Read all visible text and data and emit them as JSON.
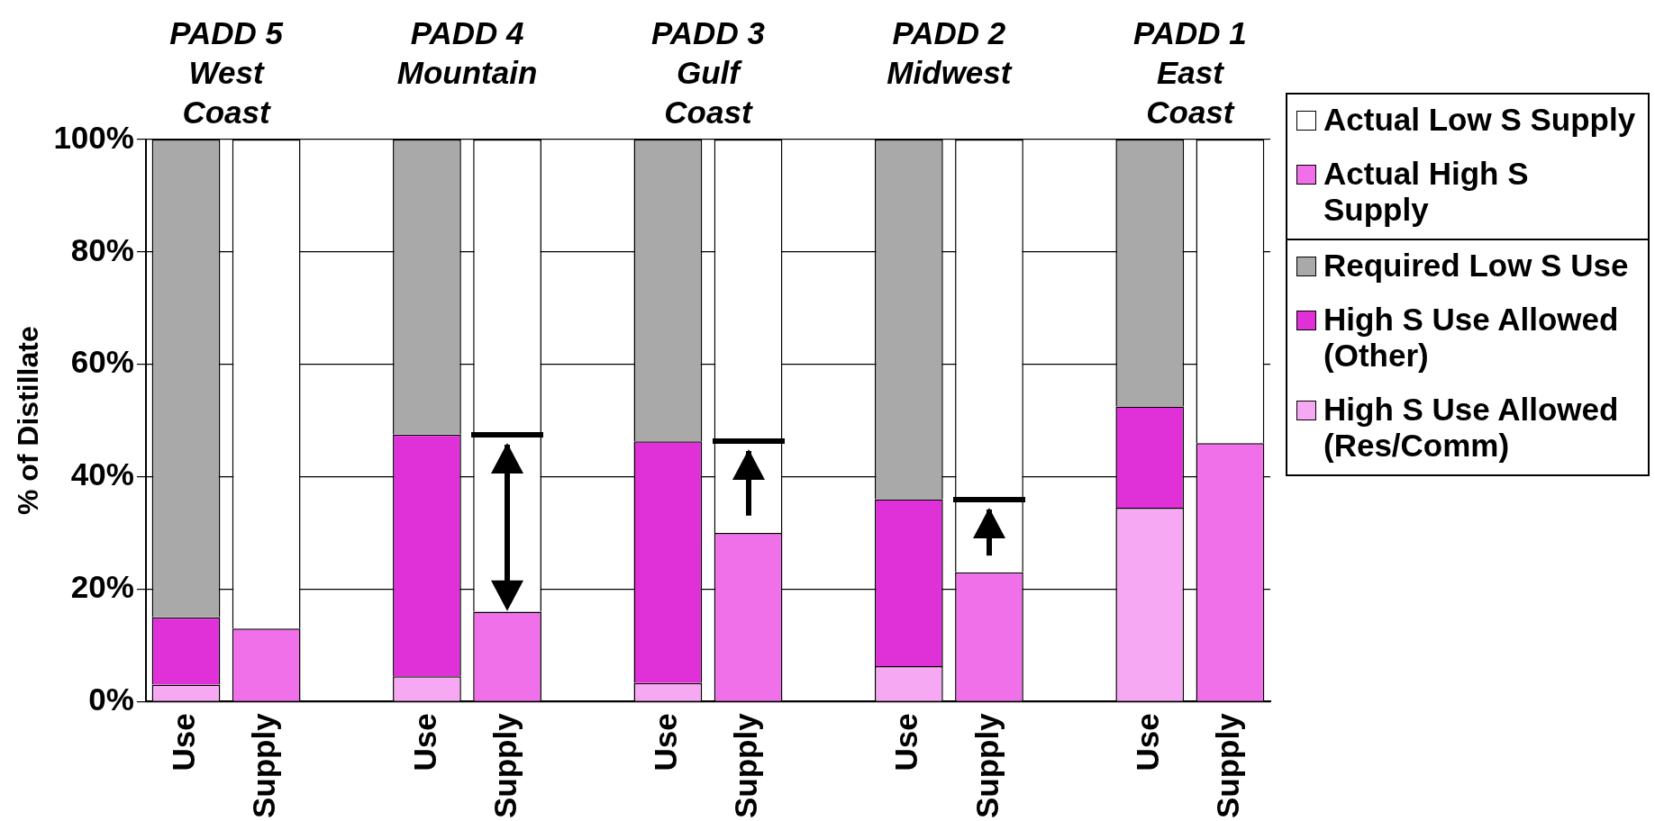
{
  "chart_data": {
    "type": "bar",
    "stacked": true,
    "ylabel": "% of Distillate",
    "categories": [
      "Use",
      "Supply",
      null,
      "Use",
      "Supply",
      null,
      "Use",
      "Supply",
      null,
      "Use",
      "Supply",
      null,
      "Use",
      "Supply"
    ],
    "series": [
      {
        "name": "High S Use Allowed (Res/Comm)",
        "color": "#f7a8f2",
        "values": [
          3,
          null,
          null,
          4.5,
          null,
          null,
          3.3,
          null,
          null,
          6.3,
          null,
          null,
          34.5,
          null
        ]
      },
      {
        "name": "High S Use Allowed (Other)",
        "color": "#e030d8",
        "values": [
          12,
          null,
          null,
          43,
          null,
          null,
          43,
          null,
          null,
          29.7,
          null,
          null,
          18,
          null
        ]
      },
      {
        "name": "Required Low S Use",
        "color": "#a9a9a9",
        "values": [
          85,
          null,
          null,
          52.5,
          null,
          null,
          53.7,
          null,
          null,
          64,
          null,
          null,
          47.5,
          null
        ]
      },
      {
        "name": "Actual High S Supply",
        "color": "#f070ea",
        "values": [
          null,
          13,
          null,
          null,
          16,
          null,
          null,
          30,
          null,
          null,
          23,
          null,
          null,
          46
        ]
      },
      {
        "name": "Actual Low S Supply",
        "color": "#ffffff",
        "values": [
          null,
          87,
          null,
          null,
          84,
          null,
          null,
          70,
          null,
          null,
          77,
          null,
          null,
          54
        ]
      }
    ],
    "ylim": [
      0,
      100
    ],
    "yticks": [
      {
        "value": 0,
        "label": "0%"
      },
      {
        "value": 20,
        "label": "20%"
      },
      {
        "value": 40,
        "label": "40%"
      },
      {
        "value": 60,
        "label": "60%"
      },
      {
        "value": 80,
        "label": "80%"
      },
      {
        "value": 100,
        "label": "100%"
      }
    ],
    "grid": "y",
    "legend": "right",
    "annotations": [
      "PADD 5\nWest\nCoast",
      "PADD 4\nMountain",
      "PADD 3\nGulf\nCoast",
      "PADD 2\nMidwest",
      "PADD 1\nEast\nCoast"
    ]
  }
}
